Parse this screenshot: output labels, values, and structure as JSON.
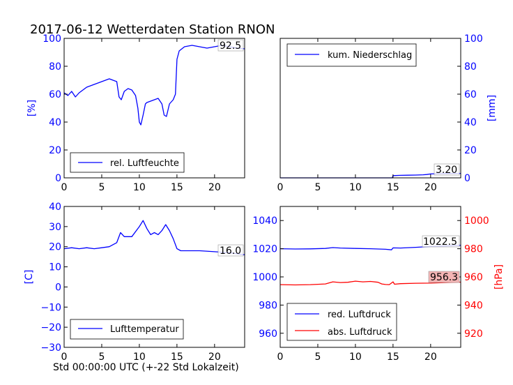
{
  "title": "2017-06-12 Wetterdaten Station RNON",
  "xlabel": "Std 00:00:00 UTC (+-22 Std Lokalzeit)",
  "colors": {
    "blue": "#0000ff",
    "red": "#ff0000"
  },
  "chart_data": [
    {
      "type": "line",
      "panel": "top-left",
      "ylabel": "[%]",
      "yaxis_side": "left",
      "xlim": [
        0,
        24
      ],
      "ylim": [
        0,
        100
      ],
      "xticks": [
        "0",
        "5",
        "10",
        "15",
        "20"
      ],
      "yticks": [
        "0",
        "20",
        "40",
        "60",
        "80",
        "100"
      ],
      "legend_placement": "lower-left",
      "grid": false,
      "annotation": "92.5",
      "series": [
        {
          "name": "rel. Luftfeuchte",
          "color": "#0000ff",
          "x": [
            0,
            0.5,
            1,
            1.5,
            2,
            2.5,
            3,
            3.5,
            4,
            4.5,
            5,
            5.5,
            6,
            6.5,
            7,
            7.3,
            7.6,
            8,
            8.5,
            9,
            9.5,
            9.8,
            10,
            10.2,
            10.5,
            10.8,
            11,
            11.5,
            12,
            12.5,
            13,
            13.3,
            13.6,
            14,
            14.5,
            14.8,
            15,
            15.3,
            16,
            17,
            18,
            19,
            20,
            21,
            22,
            23,
            24
          ],
          "y": [
            61,
            59,
            62,
            58,
            61,
            63,
            65,
            66,
            67,
            68,
            69,
            70,
            71,
            70,
            69,
            58,
            56,
            62,
            64,
            63,
            59,
            50,
            40,
            38,
            45,
            53,
            54,
            55,
            56,
            57,
            53,
            45,
            44,
            53,
            56,
            60,
            85,
            91,
            94,
            95,
            94,
            93,
            94,
            95,
            94,
            93,
            92.5
          ]
        }
      ]
    },
    {
      "type": "line",
      "panel": "top-right",
      "ylabel": "[mm]",
      "yaxis_side": "right",
      "xlim": [
        0,
        24
      ],
      "ylim": [
        0,
        100
      ],
      "xticks": [
        "0",
        "5",
        "10",
        "15",
        "20"
      ],
      "yticks": [
        "0",
        "20",
        "40",
        "60",
        "80",
        "100"
      ],
      "legend_placement": "upper-left",
      "grid": false,
      "annotation": "3.20",
      "series": [
        {
          "name": "kum. Niederschlag",
          "color": "#0000ff",
          "x": [
            0,
            14.9,
            15,
            16,
            17,
            18,
            19,
            19.5,
            20,
            21,
            22,
            23,
            24
          ],
          "y": [
            0,
            0,
            1.6,
            1.8,
            1.9,
            2.0,
            2.2,
            2.4,
            2.8,
            3.0,
            3.1,
            3.2,
            3.2
          ]
        }
      ]
    },
    {
      "type": "line",
      "panel": "bottom-left",
      "ylabel": "[C]",
      "yaxis_side": "left",
      "xlim": [
        0,
        24
      ],
      "ylim": [
        -30,
        40
      ],
      "xticks": [
        "0",
        "5",
        "10",
        "15",
        "20"
      ],
      "yticks": [
        "−30",
        "−20",
        "−10",
        "0",
        "10",
        "20",
        "30",
        "40"
      ],
      "legend_placement": "lower-left",
      "grid": false,
      "annotation": "16.0",
      "series": [
        {
          "name": "Lufttemperatur",
          "color": "#0000ff",
          "x": [
            0,
            1,
            2,
            3,
            4,
            5,
            6,
            6.5,
            7,
            7.5,
            8,
            9,
            10,
            10.5,
            11,
            11.5,
            12,
            12.5,
            13,
            13.5,
            14,
            14.5,
            15,
            15.5,
            16,
            18,
            20,
            22,
            24
          ],
          "y": [
            19,
            19.5,
            19,
            19.5,
            19,
            19.5,
            20,
            21,
            22,
            27,
            25,
            25,
            30,
            33,
            29,
            26,
            27,
            26,
            28,
            31,
            28,
            24,
            19,
            18,
            18,
            18,
            17.5,
            17,
            16
          ]
        }
      ]
    },
    {
      "type": "line",
      "panel": "bottom-right",
      "ylabel": "[hPa]",
      "yaxis_side": "dual",
      "xlim": [
        0,
        24
      ],
      "ylim_left": [
        950,
        1050
      ],
      "ylim_right": [
        910,
        1010
      ],
      "xticks": [
        "0",
        "5",
        "10",
        "15",
        "20"
      ],
      "yticks_left": [
        "960",
        "980",
        "1000",
        "1020",
        "1040"
      ],
      "yticks_right": [
        "920",
        "940",
        "960",
        "980",
        "1000"
      ],
      "legend_placement": "lower-left",
      "grid": false,
      "annotations": [
        "1022.5",
        "956.3"
      ],
      "series": [
        {
          "name": "red. Luftdruck",
          "color": "#0000ff",
          "axis": "left",
          "x": [
            0,
            2,
            4,
            6,
            7,
            8,
            10,
            12,
            14,
            14.8,
            15,
            16,
            18,
            20,
            22,
            24
          ],
          "y": [
            1020,
            1019.8,
            1019.9,
            1020.2,
            1020.8,
            1020.5,
            1020.2,
            1020,
            1019.6,
            1019.2,
            1020.6,
            1020.5,
            1021,
            1021.6,
            1022,
            1022.5
          ]
        },
        {
          "name": "abs. Luftdruck",
          "color": "#ff0000",
          "axis": "right",
          "x": [
            0,
            2,
            4,
            6,
            7,
            8,
            9,
            10,
            11,
            12,
            13,
            13.5,
            14,
            14.5,
            15,
            15.2,
            16,
            18,
            20,
            22,
            24
          ],
          "y": [
            954.5,
            954.3,
            954.5,
            955,
            956.5,
            956,
            956.2,
            957,
            956.5,
            956.8,
            956.2,
            955,
            954.6,
            954.5,
            956.5,
            954.8,
            955.2,
            955.5,
            955.6,
            956,
            956.3
          ]
        }
      ]
    }
  ]
}
